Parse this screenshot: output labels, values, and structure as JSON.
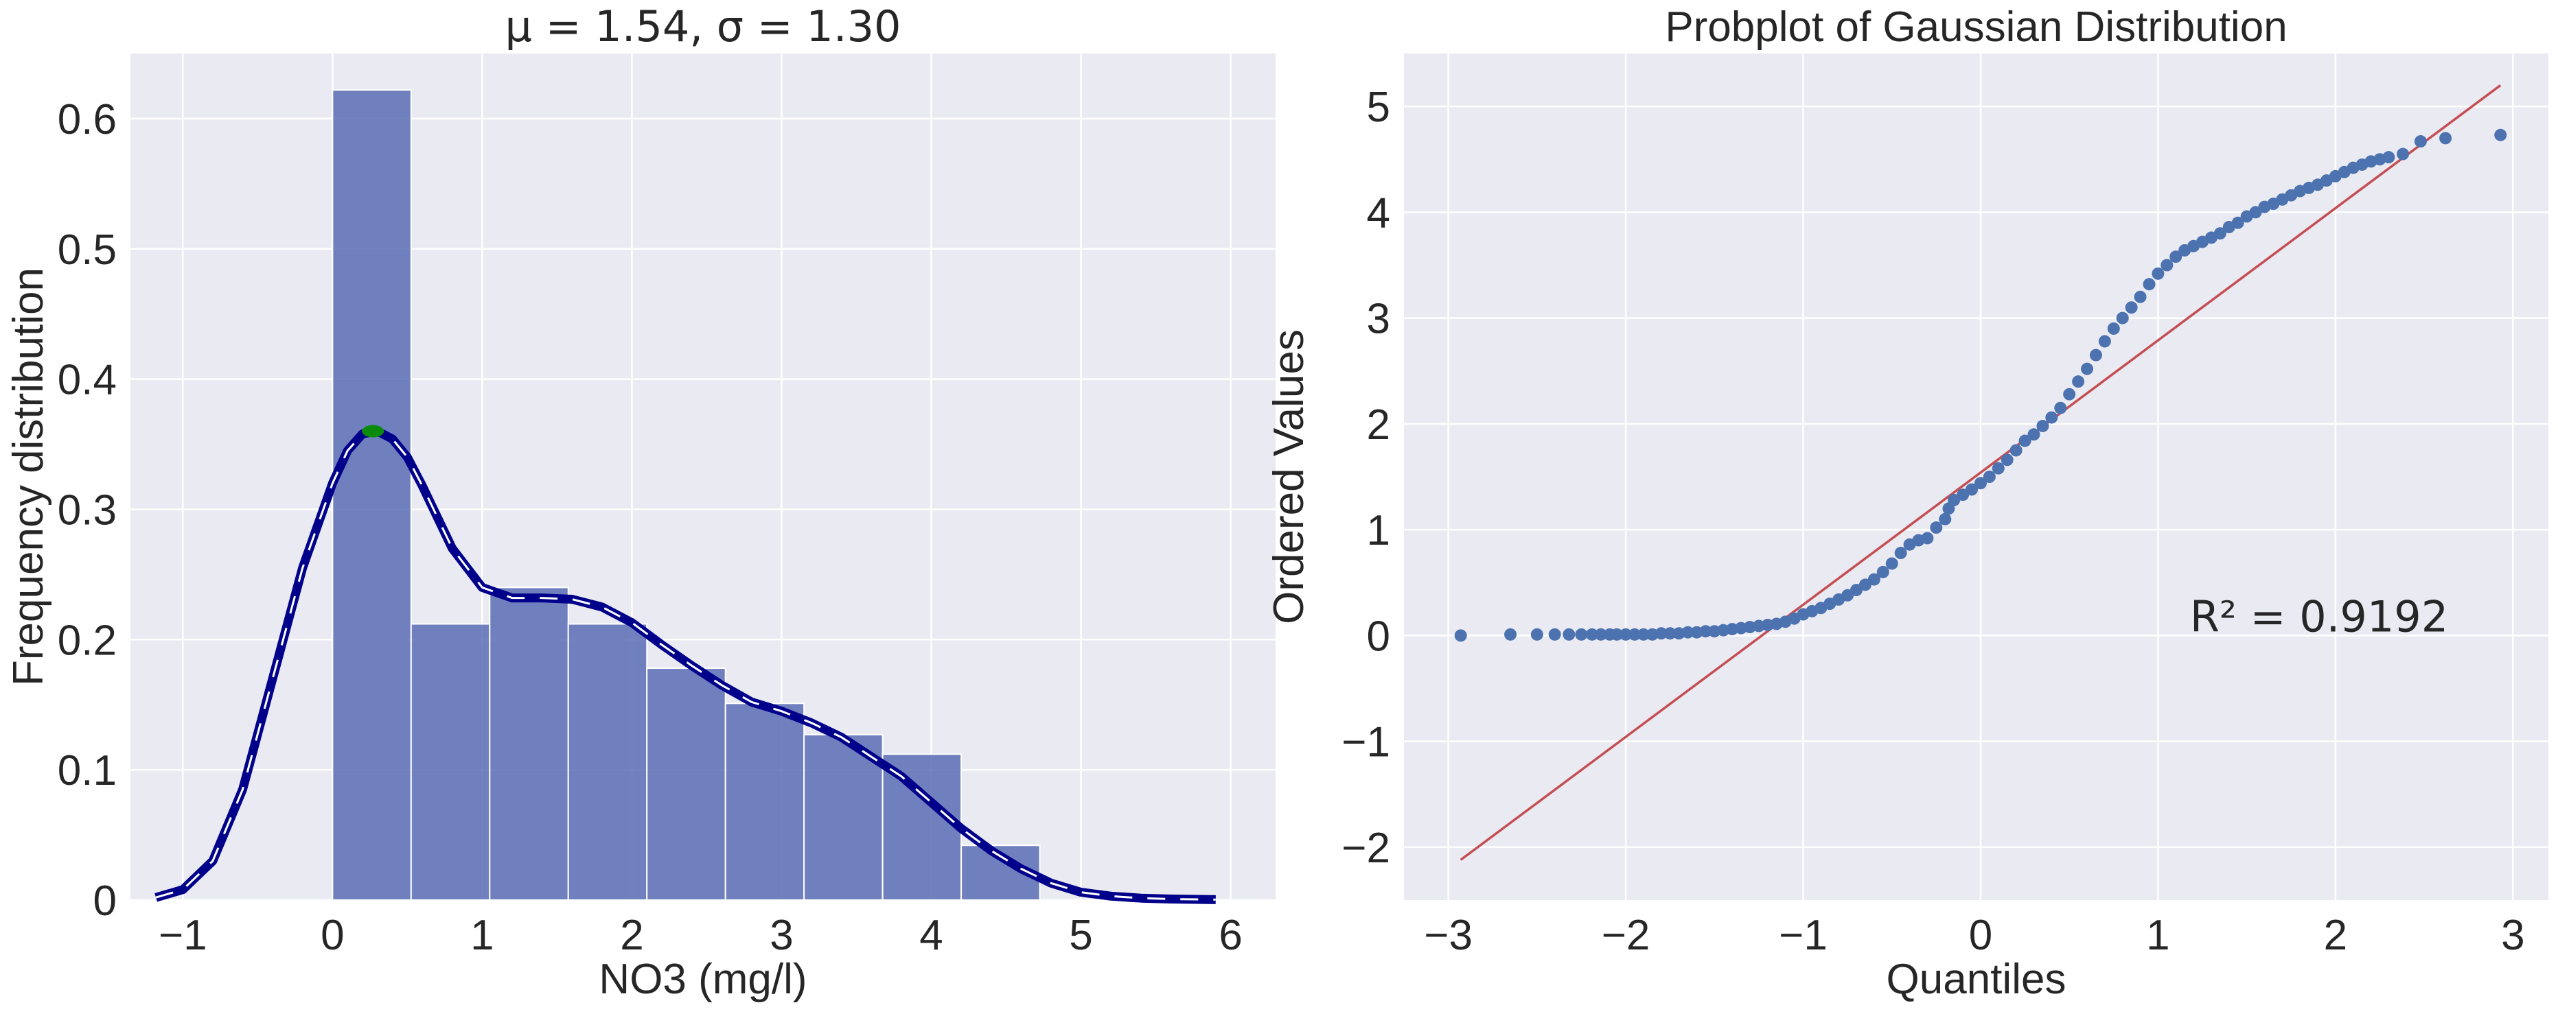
{
  "chart_data": [
    {
      "type": "bar",
      "title": "μ = 1.54, σ = 1.30",
      "xlabel": "NO3 (mg/l)",
      "ylabel": "Frequency distribution",
      "xlim": [
        -1.35,
        6.3
      ],
      "ylim": [
        0,
        0.65
      ],
      "xticks": [
        -1,
        0,
        1,
        2,
        3,
        4,
        5,
        6
      ],
      "yticks": [
        0,
        0.1,
        0.2,
        0.3,
        0.4,
        0.5,
        0.6
      ],
      "ytick_labels": [
        "0",
        "0.1",
        "0.2",
        "0.3",
        "0.4",
        "0.5",
        "0.6"
      ],
      "xtick_labels": [
        "−1",
        "0",
        "1",
        "2",
        "3",
        "4",
        "5",
        "6"
      ],
      "grid": true,
      "bar_color": "#5a6db5",
      "bins": [
        {
          "x0": 0.0,
          "x1": 0.525,
          "value": 0.622
        },
        {
          "x0": 0.525,
          "x1": 1.05,
          "value": 0.212
        },
        {
          "x0": 1.05,
          "x1": 1.575,
          "value": 0.24
        },
        {
          "x0": 1.575,
          "x1": 2.1,
          "value": 0.212
        },
        {
          "x0": 2.1,
          "x1": 2.625,
          "value": 0.178
        },
        {
          "x0": 2.625,
          "x1": 3.15,
          "value": 0.151
        },
        {
          "x0": 3.15,
          "x1": 3.675,
          "value": 0.127
        },
        {
          "x0": 3.675,
          "x1": 4.2,
          "value": 0.112
        },
        {
          "x0": 4.2,
          "x1": 4.725,
          "value": 0.042
        }
      ],
      "kde": {
        "color": "#00008b",
        "x": [
          -1.18,
          -1.0,
          -0.8,
          -0.6,
          -0.4,
          -0.2,
          0.0,
          0.1,
          0.2,
          0.3,
          0.4,
          0.5,
          0.6,
          0.8,
          1.0,
          1.2,
          1.4,
          1.6,
          1.8,
          2.0,
          2.2,
          2.4,
          2.6,
          2.8,
          3.0,
          3.2,
          3.4,
          3.6,
          3.8,
          4.0,
          4.2,
          4.4,
          4.6,
          4.8,
          5.0,
          5.2,
          5.4,
          5.6,
          5.9
        ],
        "y": [
          0.002,
          0.008,
          0.03,
          0.085,
          0.17,
          0.255,
          0.32,
          0.345,
          0.358,
          0.36,
          0.354,
          0.34,
          0.318,
          0.27,
          0.24,
          0.232,
          0.232,
          0.231,
          0.225,
          0.213,
          0.196,
          0.18,
          0.165,
          0.152,
          0.145,
          0.136,
          0.125,
          0.11,
          0.095,
          0.075,
          0.055,
          0.038,
          0.024,
          0.013,
          0.006,
          0.003,
          0.0015,
          0.0008,
          0.0003
        ]
      },
      "peak_marker": {
        "x": 0.27,
        "y": 0.36,
        "color": "#0b8a0b"
      }
    },
    {
      "type": "scatter",
      "title": "Probplot of Gaussian Distribution",
      "xlabel": "Quantiles",
      "ylabel": "Ordered Values",
      "xlim": [
        -3.25,
        3.2
      ],
      "ylim": [
        -2.5,
        5.5
      ],
      "xticks": [
        -3,
        -2,
        -1,
        0,
        1,
        2,
        3
      ],
      "yticks": [
        -2,
        -1,
        0,
        1,
        2,
        3,
        4,
        5
      ],
      "xtick_labels": [
        "−3",
        "−2",
        "−1",
        "0",
        "1",
        "2",
        "3"
      ],
      "ytick_labels": [
        "−2",
        "−1",
        "0",
        "1",
        "2",
        "3",
        "4",
        "5"
      ],
      "grid": true,
      "point_color": "#4c72b0",
      "fit_line": {
        "color": "#c44e52",
        "x": [
          -2.93,
          2.93
        ],
        "y": [
          -2.12,
          5.2
        ]
      },
      "annotation": {
        "text": "R² = 0.9192",
        "x": 1.18,
        "y": 0.18
      },
      "points": {
        "x": [
          -2.93,
          -2.65,
          -2.5,
          -2.4,
          -2.32,
          -2.25,
          -2.19,
          -2.14,
          -2.09,
          -2.05,
          -2.0,
          -1.95,
          -1.9,
          -1.85,
          -1.8,
          -1.75,
          -1.7,
          -1.65,
          -1.6,
          -1.55,
          -1.5,
          -1.45,
          -1.4,
          -1.35,
          -1.3,
          -1.25,
          -1.2,
          -1.15,
          -1.1,
          -1.05,
          -1.0,
          -0.95,
          -0.9,
          -0.85,
          -0.8,
          -0.75,
          -0.7,
          -0.65,
          -0.6,
          -0.55,
          -0.5,
          -0.45,
          -0.4,
          -0.35,
          -0.3,
          -0.25,
          -0.2,
          -0.18,
          -0.15,
          -0.1,
          -0.05,
          0.0,
          0.05,
          0.1,
          0.15,
          0.2,
          0.25,
          0.3,
          0.35,
          0.4,
          0.45,
          0.5,
          0.55,
          0.6,
          0.65,
          0.7,
          0.75,
          0.8,
          0.85,
          0.9,
          0.95,
          1.0,
          1.05,
          1.1,
          1.15,
          1.2,
          1.25,
          1.3,
          1.35,
          1.4,
          1.45,
          1.5,
          1.55,
          1.6,
          1.65,
          1.7,
          1.75,
          1.8,
          1.85,
          1.9,
          1.95,
          2.0,
          2.05,
          2.1,
          2.15,
          2.2,
          2.25,
          2.3,
          2.38,
          2.48,
          2.62,
          2.93
        ],
        "y": [
          0.0,
          0.01,
          0.01,
          0.01,
          0.01,
          0.01,
          0.01,
          0.01,
          0.01,
          0.01,
          0.01,
          0.01,
          0.01,
          0.01,
          0.02,
          0.02,
          0.02,
          0.03,
          0.03,
          0.04,
          0.04,
          0.05,
          0.06,
          0.07,
          0.08,
          0.09,
          0.1,
          0.11,
          0.13,
          0.16,
          0.2,
          0.23,
          0.26,
          0.3,
          0.34,
          0.38,
          0.43,
          0.48,
          0.53,
          0.6,
          0.68,
          0.78,
          0.86,
          0.9,
          0.92,
          1.02,
          1.1,
          1.2,
          1.28,
          1.33,
          1.38,
          1.44,
          1.5,
          1.58,
          1.66,
          1.75,
          1.84,
          1.9,
          1.98,
          2.06,
          2.15,
          2.28,
          2.4,
          2.52,
          2.65,
          2.78,
          2.9,
          3.0,
          3.1,
          3.2,
          3.32,
          3.42,
          3.5,
          3.58,
          3.64,
          3.68,
          3.72,
          3.76,
          3.8,
          3.86,
          3.9,
          3.96,
          4.0,
          4.05,
          4.08,
          4.12,
          4.16,
          4.2,
          4.23,
          4.26,
          4.3,
          4.34,
          4.38,
          4.42,
          4.45,
          4.48,
          4.5,
          4.52,
          4.55,
          4.67,
          4.7,
          4.73
        ]
      }
    }
  ]
}
